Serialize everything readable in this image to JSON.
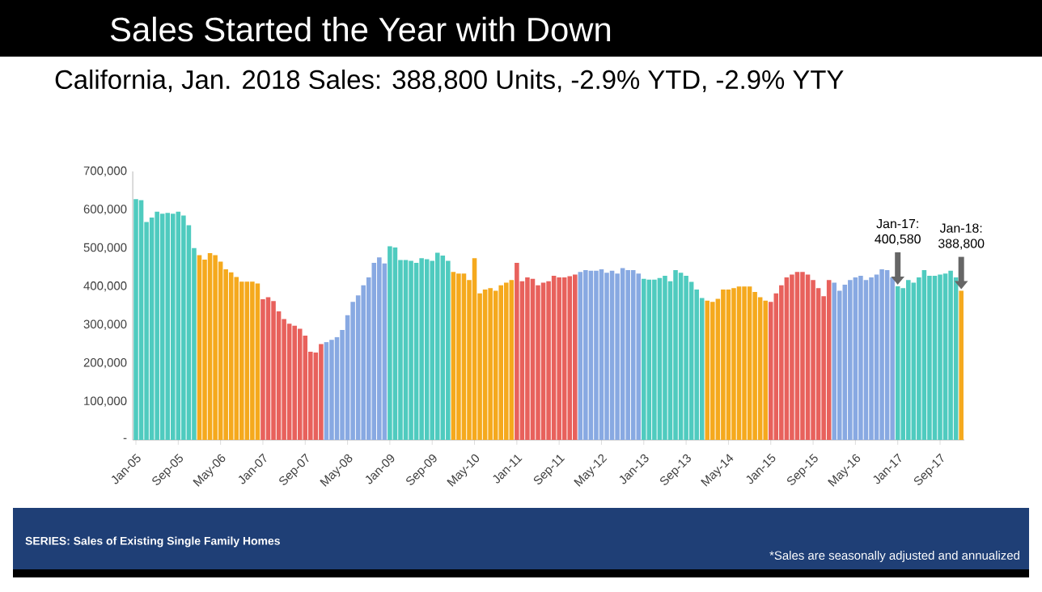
{
  "chart_data": {
    "type": "bar",
    "title": "Sales Started the Year with Down",
    "subtitle": "California, Jan. 2018 Sales: 388,800 Units, -2.9% YTD, -2.9% YTY",
    "categories": [
      "Jan-05",
      null,
      null,
      null,
      null,
      null,
      null,
      null,
      "Sep-05",
      null,
      null,
      null,
      null,
      null,
      null,
      null,
      "May-06",
      null,
      null,
      null,
      null,
      null,
      null,
      null,
      "Jan-07",
      null,
      null,
      null,
      null,
      null,
      null,
      null,
      "Sep-07",
      null,
      null,
      null,
      null,
      null,
      null,
      null,
      "May-08",
      null,
      null,
      null,
      null,
      null,
      null,
      null,
      "Jan-09",
      null,
      null,
      null,
      null,
      null,
      null,
      null,
      "Sep-09",
      null,
      null,
      null,
      null,
      null,
      null,
      null,
      "May-10",
      null,
      null,
      null,
      null,
      null,
      null,
      null,
      "Jan-11",
      null,
      null,
      null,
      null,
      null,
      null,
      null,
      "Sep-11",
      null,
      null,
      null,
      null,
      null,
      null,
      null,
      "May-12",
      null,
      null,
      null,
      null,
      null,
      null,
      null,
      "Jan-13",
      null,
      null,
      null,
      null,
      null,
      null,
      null,
      "Sep-13",
      null,
      null,
      null,
      null,
      null,
      null,
      null,
      "May-14",
      null,
      null,
      null,
      null,
      null,
      null,
      null,
      "Jan-15",
      null,
      null,
      null,
      null,
      null,
      null,
      null,
      "Sep-15",
      null,
      null,
      null,
      null,
      null,
      null,
      null,
      "May-16",
      null,
      null,
      null,
      null,
      null,
      null,
      null,
      "Jan-17",
      null,
      null,
      null,
      null,
      null,
      null,
      null,
      "Sep-17",
      null,
      null,
      null,
      null
    ],
    "values": [
      628000,
      625000,
      568000,
      580000,
      595000,
      590000,
      592000,
      590000,
      595000,
      585000,
      560000,
      500000,
      482000,
      470000,
      487000,
      482000,
      465000,
      445000,
      437000,
      425000,
      413000,
      413000,
      413000,
      408000,
      367000,
      372000,
      362000,
      335000,
      315000,
      303000,
      298000,
      290000,
      272000,
      230000,
      228000,
      250000,
      255000,
      261000,
      268000,
      287000,
      325000,
      360000,
      377000,
      403000,
      424000,
      462000,
      476000,
      460000,
      505000,
      502000,
      469000,
      469000,
      467000,
      462000,
      474000,
      471000,
      467000,
      488000,
      481000,
      467000,
      438000,
      434000,
      434000,
      417000,
      474000,
      382000,
      392000,
      396000,
      389000,
      403000,
      410000,
      417000,
      462000,
      414000,
      424000,
      420000,
      403000,
      410000,
      414000,
      428000,
      424000,
      424000,
      427000,
      431000,
      438000,
      443000,
      441000,
      441000,
      445000,
      436000,
      441000,
      434000,
      448000,
      443000,
      443000,
      434000,
      420000,
      418000,
      418000,
      422000,
      428000,
      414000,
      443000,
      436000,
      428000,
      412000,
      392000,
      370000,
      363000,
      360000,
      368000,
      392000,
      392000,
      396000,
      400000,
      400000,
      400000,
      386000,
      372000,
      363000,
      360000,
      382000,
      403000,
      424000,
      431000,
      438000,
      438000,
      431000,
      417000,
      396000,
      375000,
      417000,
      410000,
      389000,
      405000,
      417000,
      424000,
      428000,
      417000,
      424000,
      431000,
      445000,
      443000,
      424000,
      400580,
      396000,
      417000,
      410000,
      424000,
      443000,
      428000,
      428000,
      431000,
      434000,
      441000,
      424000,
      388800
    ],
    "colors": [
      "#4fcbbf",
      "#4fcbbf",
      "#4fcbbf",
      "#4fcbbf",
      "#4fcbbf",
      "#4fcbbf",
      "#4fcbbf",
      "#4fcbbf",
      "#4fcbbf",
      "#4fcbbf",
      "#4fcbbf",
      "#4fcbbf",
      "#f5a91d",
      "#f5a91d",
      "#f5a91d",
      "#f5a91d",
      "#f5a91d",
      "#f5a91d",
      "#f5a91d",
      "#f5a91d",
      "#f5a91d",
      "#f5a91d",
      "#f5a91d",
      "#f5a91d",
      "#e8615c",
      "#e8615c",
      "#e8615c",
      "#e8615c",
      "#e8615c",
      "#e8615c",
      "#e8615c",
      "#e8615c",
      "#e8615c",
      "#e8615c",
      "#e8615c",
      "#e8615c",
      "#88a9e2",
      "#88a9e2",
      "#88a9e2",
      "#88a9e2",
      "#88a9e2",
      "#88a9e2",
      "#88a9e2",
      "#88a9e2",
      "#88a9e2",
      "#88a9e2",
      "#88a9e2",
      "#88a9e2",
      "#4fcbbf",
      "#4fcbbf",
      "#4fcbbf",
      "#4fcbbf",
      "#4fcbbf",
      "#4fcbbf",
      "#4fcbbf",
      "#4fcbbf",
      "#4fcbbf",
      "#4fcbbf",
      "#4fcbbf",
      "#4fcbbf",
      "#f5a91d",
      "#f5a91d",
      "#f5a91d",
      "#f5a91d",
      "#f5a91d",
      "#f5a91d",
      "#f5a91d",
      "#f5a91d",
      "#f5a91d",
      "#f5a91d",
      "#f5a91d",
      "#f5a91d",
      "#e8615c",
      "#e8615c",
      "#e8615c",
      "#e8615c",
      "#e8615c",
      "#e8615c",
      "#e8615c",
      "#e8615c",
      "#e8615c",
      "#e8615c",
      "#e8615c",
      "#e8615c",
      "#88a9e2",
      "#88a9e2",
      "#88a9e2",
      "#88a9e2",
      "#88a9e2",
      "#88a9e2",
      "#88a9e2",
      "#88a9e2",
      "#88a9e2",
      "#88a9e2",
      "#88a9e2",
      "#88a9e2",
      "#4fcbbf",
      "#4fcbbf",
      "#4fcbbf",
      "#4fcbbf",
      "#4fcbbf",
      "#4fcbbf",
      "#4fcbbf",
      "#4fcbbf",
      "#4fcbbf",
      "#4fcbbf",
      "#4fcbbf",
      "#4fcbbf",
      "#f5a91d",
      "#f5a91d",
      "#f5a91d",
      "#f5a91d",
      "#f5a91d",
      "#f5a91d",
      "#f5a91d",
      "#f5a91d",
      "#f5a91d",
      "#f5a91d",
      "#f5a91d",
      "#f5a91d",
      "#e8615c",
      "#e8615c",
      "#e8615c",
      "#e8615c",
      "#e8615c",
      "#e8615c",
      "#e8615c",
      "#e8615c",
      "#e8615c",
      "#e8615c",
      "#e8615c",
      "#e8615c",
      "#88a9e2",
      "#88a9e2",
      "#88a9e2",
      "#88a9e2",
      "#88a9e2",
      "#88a9e2",
      "#88a9e2",
      "#88a9e2",
      "#88a9e2",
      "#88a9e2",
      "#88a9e2",
      "#88a9e2",
      "#4fcbbf",
      "#4fcbbf",
      "#4fcbbf",
      "#4fcbbf",
      "#4fcbbf",
      "#4fcbbf",
      "#4fcbbf",
      "#4fcbbf",
      "#4fcbbf",
      "#4fcbbf",
      "#4fcbbf",
      "#4fcbbf",
      "#f5a91d"
    ],
    "ylim": [
      0,
      700000
    ],
    "yticks": [
      {
        "value": 0,
        "label": "-"
      },
      {
        "value": 100000,
        "label": "100,000"
      },
      {
        "value": 200000,
        "label": "200,000"
      },
      {
        "value": 300000,
        "label": "300,000"
      },
      {
        "value": 400000,
        "label": "400,000"
      },
      {
        "value": 500000,
        "label": "500,000"
      },
      {
        "value": 600000,
        "label": "600,000"
      },
      {
        "value": 700000,
        "label": "700,000"
      }
    ],
    "annotations": [
      {
        "text": "Jan-17: 400,580",
        "x": "Jan-17",
        "y": 400580
      },
      {
        "text": "Jan-18: 388,800",
        "y": 388800
      },
      "SERIES: Sales of Existing Single Family Homes",
      "*Sales are seasonally adjusted and annualized"
    ]
  }
}
